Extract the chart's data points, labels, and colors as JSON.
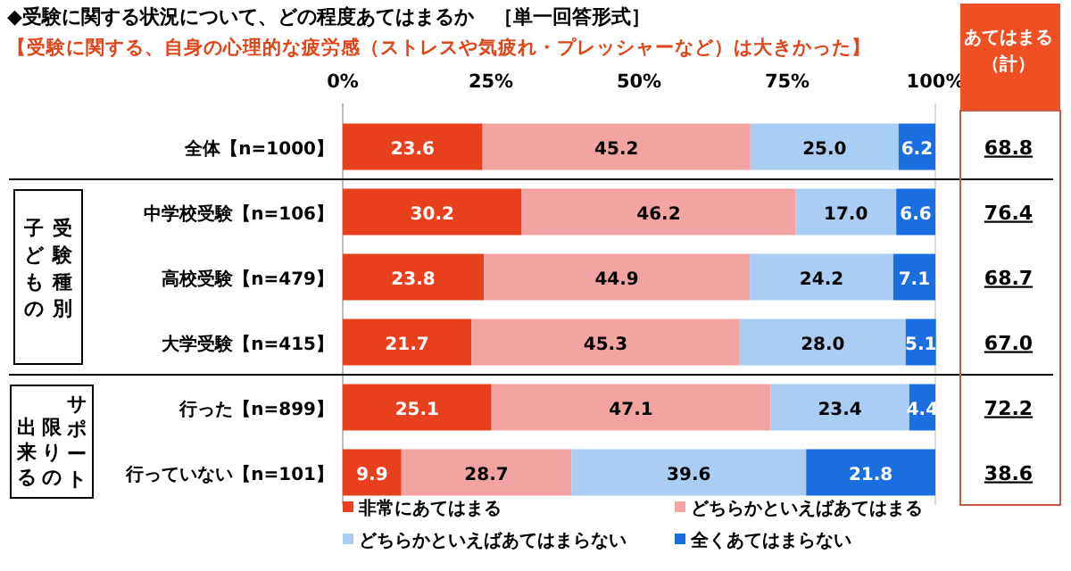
{
  "chart_data": {
    "type": "bar",
    "orientation": "horizontal",
    "stacked": true,
    "title": "◆受験に関する状況について、どの程度あてはまるか　［単一回答形式］",
    "subtitle": "【受験に関する、自身の心理的な疲労感（ストレスや気疲れ・プレッシャーなど）は大きかった】",
    "categories": [
      "全体【n=1000】",
      "中学校受験【n=106】",
      "高校受験【n=479】",
      "大学受験【n=415】",
      "行った【n=899】",
      "行っていない【n=101】"
    ],
    "series": [
      {
        "name": "非常にあてはまる",
        "color": "#e8401c",
        "values": [
          23.6,
          30.2,
          23.8,
          21.7,
          25.1,
          9.9
        ],
        "value_labels": [
          "23.6",
          "30.2",
          "23.8",
          "21.7",
          "25.1",
          "9.9"
        ]
      },
      {
        "name": "どちらかといえばあてはまる",
        "color": "#f4a3a3",
        "values": [
          45.2,
          46.2,
          44.9,
          45.3,
          47.1,
          28.7
        ],
        "value_labels": [
          "45.2",
          "46.2",
          "44.9",
          "45.3",
          "47.1",
          "28.7"
        ]
      },
      {
        "name": "どちらかといえばあてはまらない",
        "color": "#a9cdf3",
        "values": [
          25.0,
          17.0,
          24.2,
          28.0,
          23.4,
          39.6
        ],
        "value_labels": [
          "25.0",
          "17.0",
          "24.2",
          "28.0",
          "23.4",
          "39.6"
        ]
      },
      {
        "name": "全くあてはまらない",
        "color": "#1a6ee0",
        "values": [
          6.2,
          6.6,
          7.1,
          5.1,
          4.4,
          21.8
        ],
        "value_labels": [
          "6.2",
          "6.6",
          "7.1",
          "5.1",
          "4.4",
          "21.8"
        ]
      }
    ],
    "xlim": [
      0,
      100
    ],
    "xticks": [
      {
        "value": 0,
        "label": "0%"
      },
      {
        "value": 25,
        "label": "25%"
      },
      {
        "value": 50,
        "label": "50%"
      },
      {
        "value": 75,
        "label": "75%"
      },
      {
        "value": 100,
        "label": "100%"
      }
    ],
    "legend": "bottom",
    "grid": false,
    "annotations": [
      "あてはまる（計）",
      "68.8",
      "76.4",
      "68.7",
      "67.0",
      "72.2",
      "38.6",
      "子どもの",
      "受験種別",
      "出来る",
      "限りの",
      "サポート"
    ]
  }
}
